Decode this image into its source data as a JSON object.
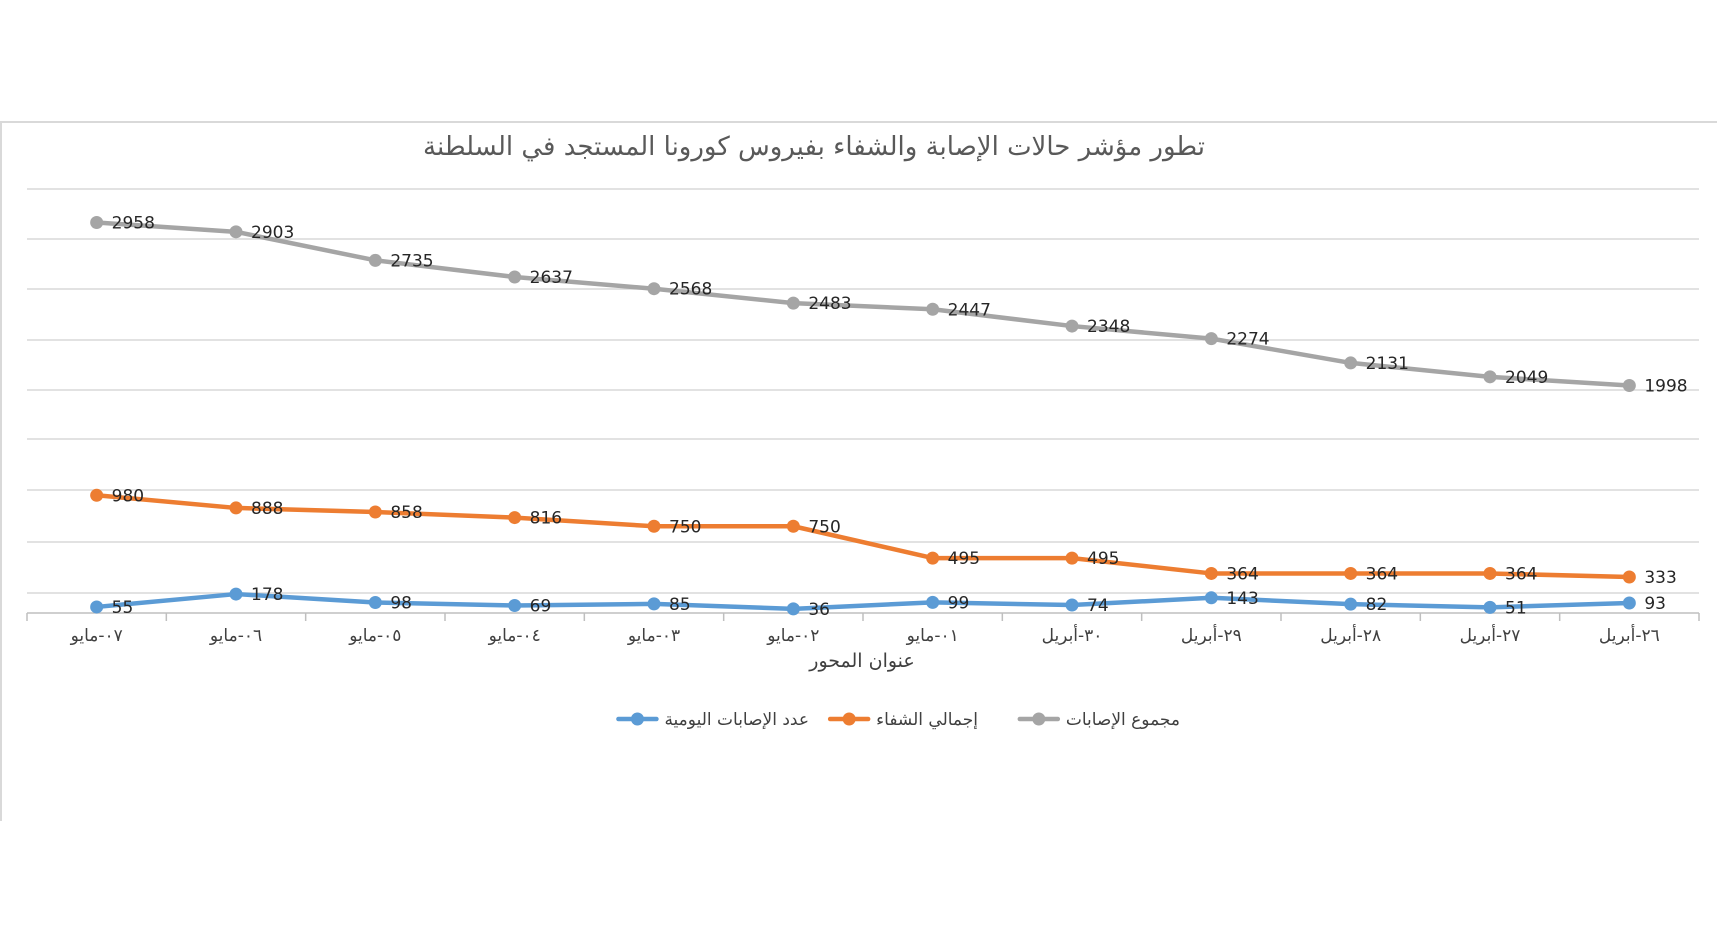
{
  "chart_data": {
    "type": "line",
    "title": "تطور مؤشر حالات الإصابة والشفاء بفيروس كورونا المستجد في السلطنة",
    "xlabel": "عنوان المحور",
    "ylabel": "",
    "categories": [
      "٠٧-مايو",
      "٠٦-مايو",
      "٠٥-مايو",
      "٠٤-مايو",
      "٠٣-مايو",
      "٠٢-مايو",
      "٠١-مايو",
      "٣٠-أبريل",
      "٢٩-أبريل",
      "٢٨-أبريل",
      "٢٧-أبريل",
      "٢٦-أبريل"
    ],
    "series": [
      {
        "name": "مجموع الإصابات",
        "color": "#a5a5a5",
        "values": [
          2958,
          2903,
          2735,
          2637,
          2568,
          2483,
          2447,
          2348,
          2274,
          2131,
          2049,
          1998
        ]
      },
      {
        "name": "إجمالي الشفاء",
        "color": "#ed7d31",
        "values": [
          980,
          888,
          858,
          816,
          750,
          750,
          495,
          495,
          364,
          364,
          364,
          333
        ]
      },
      {
        "name": "عدد الإصابات اليومية",
        "color": "#5b9bd5",
        "values": [
          55,
          178,
          98,
          69,
          85,
          36,
          99,
          74,
          143,
          82,
          51,
          93
        ]
      }
    ],
    "grid": true,
    "legend_position": "bottom"
  }
}
